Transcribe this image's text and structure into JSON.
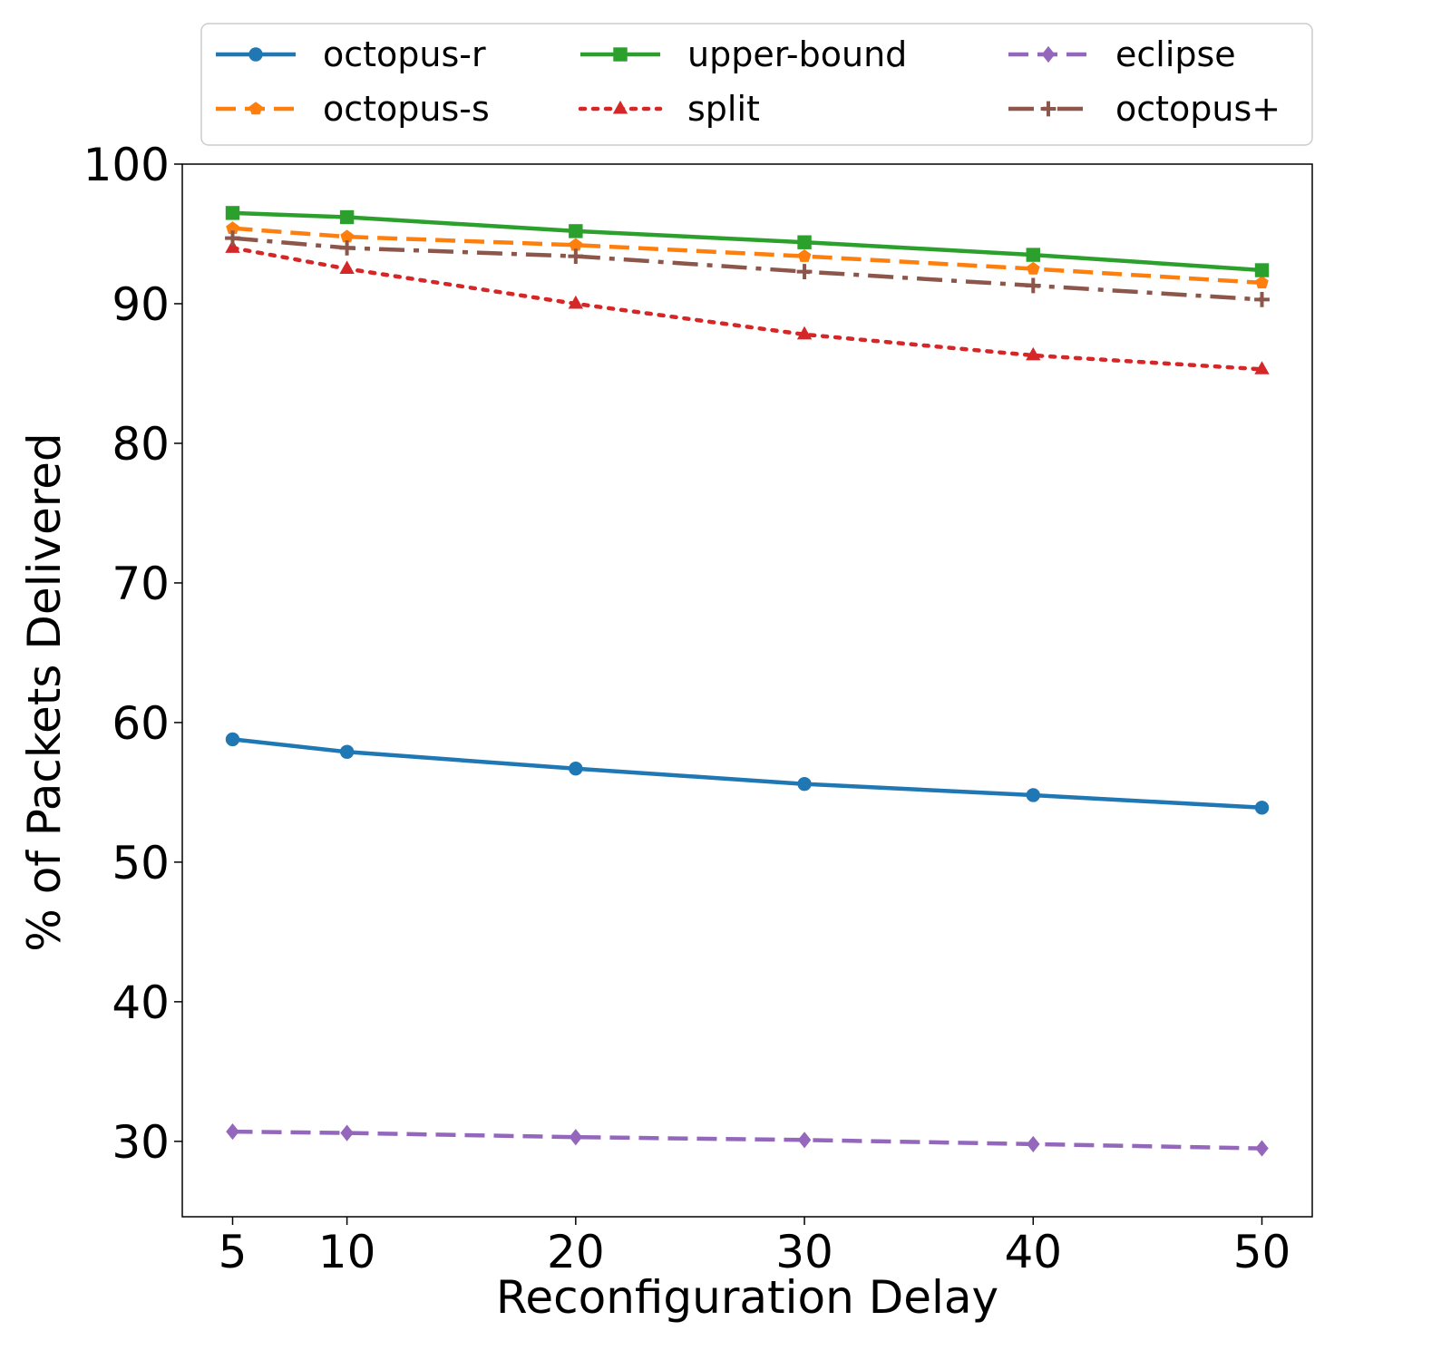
{
  "chart_data": {
    "type": "line",
    "title": "",
    "xlabel": "Reconfiguration Delay",
    "ylabel": "% of Packets Delivered",
    "x": [
      5,
      10,
      20,
      30,
      40,
      50
    ],
    "xticks": [
      5,
      10,
      20,
      30,
      40,
      50
    ],
    "yticks": [
      30,
      40,
      50,
      60,
      70,
      80,
      90,
      100
    ],
    "xlim": [
      2.8,
      52.2
    ],
    "ylim": [
      24.6,
      100
    ],
    "grid": false,
    "legend_position": "top",
    "series": [
      {
        "name": "octopus-r",
        "color": "#1f77b4",
        "marker": "circle",
        "dash": "solid",
        "values": [
          58.8,
          57.9,
          56.7,
          55.6,
          54.8,
          53.9
        ]
      },
      {
        "name": "octopus-s",
        "color": "#ff7f0e",
        "marker": "pentagon",
        "dash": "dashed",
        "values": [
          95.4,
          94.8,
          94.2,
          93.4,
          92.5,
          91.5
        ]
      },
      {
        "name": "upper-bound",
        "color": "#2ca02c",
        "marker": "square",
        "dash": "solid",
        "values": [
          96.5,
          96.2,
          95.2,
          94.4,
          93.5,
          92.4
        ]
      },
      {
        "name": "split",
        "color": "#d62728",
        "marker": "triangle",
        "dash": "dotted",
        "values": [
          94.0,
          92.5,
          90.0,
          87.8,
          86.3,
          85.3
        ]
      },
      {
        "name": "eclipse",
        "color": "#9467bd",
        "marker": "diamond",
        "dash": "dashed",
        "values": [
          30.7,
          30.6,
          30.3,
          30.1,
          29.8,
          29.5
        ]
      },
      {
        "name": "octopus+",
        "color": "#8c564b",
        "marker": "plus",
        "dash": "dashdot",
        "values": [
          94.7,
          94.0,
          93.4,
          92.3,
          91.3,
          90.3
        ]
      }
    ]
  }
}
